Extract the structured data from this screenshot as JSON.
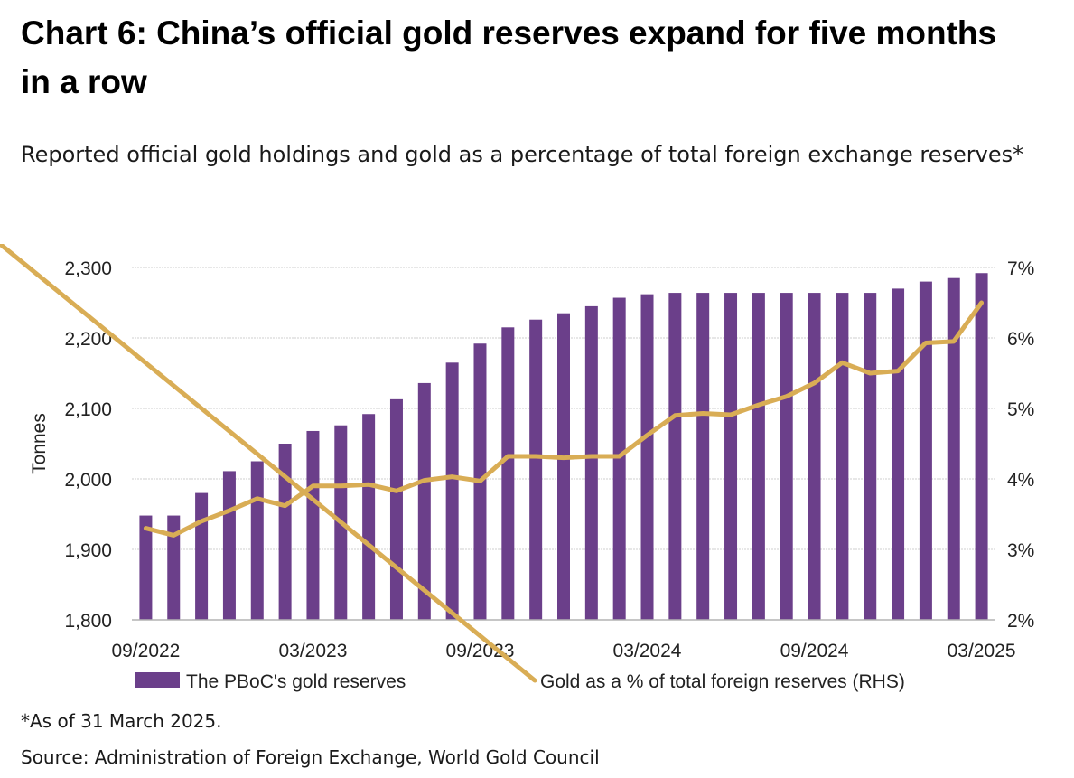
{
  "header": {
    "title": "Chart 6: China’s official gold reserves expand for five months in a row",
    "subtitle": "Reported official gold holdings and gold as a percentage of total foreign exchange reserves*"
  },
  "footer": {
    "footnote": "*As of 31 March 2025.",
    "source": "Source: Administration of Foreign Exchange, World Gold Council"
  },
  "colors": {
    "bars": "#6b3f8a",
    "line": "#d9ad55",
    "grid": "#cfcfcf",
    "axis": "#b3b3b3"
  },
  "chart_data": {
    "type": "bar+line",
    "title": "Chart 6: China’s official gold reserves expand for five months in a row",
    "subtitle": "Reported official gold holdings and gold as a percentage of total foreign exchange reserves*",
    "ylabel": "Tonnes",
    "ylim": [
      1800,
      2300
    ],
    "yticks": [
      "1,800",
      "1,900",
      "2,000",
      "2,100",
      "2,200",
      "2,300"
    ],
    "ytick_values": [
      1800,
      1900,
      2000,
      2100,
      2200,
      2300
    ],
    "y2lim": [
      2,
      7
    ],
    "y2ticks": [
      "2%",
      "3%",
      "4%",
      "5%",
      "6%",
      "7%"
    ],
    "y2tick_values": [
      2,
      3,
      4,
      5,
      6,
      7
    ],
    "grid": true,
    "legend_position": "bottom",
    "xtick_labels": [
      {
        "index": 0,
        "label": "09/2022"
      },
      {
        "index": 6,
        "label": "03/2023"
      },
      {
        "index": 12,
        "label": "09/2023"
      },
      {
        "index": 18,
        "label": "03/2024"
      },
      {
        "index": 24,
        "label": "09/2024"
      },
      {
        "index": 30,
        "label": "03/2025"
      }
    ],
    "categories": [
      "09/2022",
      "10/2022",
      "11/2022",
      "12/2022",
      "01/2023",
      "02/2023",
      "03/2023",
      "04/2023",
      "05/2023",
      "06/2023",
      "07/2023",
      "08/2023",
      "09/2023",
      "10/2023",
      "11/2023",
      "12/2023",
      "01/2024",
      "02/2024",
      "03/2024",
      "04/2024",
      "05/2024",
      "06/2024",
      "07/2024",
      "08/2024",
      "09/2024",
      "10/2024",
      "11/2024",
      "12/2024",
      "01/2025",
      "02/2025",
      "03/2025"
    ],
    "series": [
      {
        "name": "The PBoC's gold reserves",
        "type": "bar",
        "axis": "left",
        "values": [
          1948,
          1948,
          1980,
          2011,
          2025,
          2050,
          2068,
          2076,
          2092,
          2113,
          2136,
          2165,
          2192,
          2215,
          2226,
          2235,
          2245,
          2257,
          2262,
          2264,
          2264,
          2264,
          2264,
          2264,
          2264,
          2264,
          2264,
          2270,
          2280,
          2285,
          2292
        ]
      },
      {
        "name": "Gold as a % of total foreign reserves (RHS)",
        "type": "line",
        "axis": "right",
        "values": [
          3.3,
          3.2,
          3.4,
          3.55,
          3.72,
          3.62,
          3.9,
          3.9,
          3.92,
          3.83,
          3.98,
          4.03,
          3.97,
          4.32,
          4.32,
          4.3,
          4.32,
          4.32,
          4.62,
          4.9,
          4.93,
          4.91,
          5.05,
          5.17,
          5.36,
          5.65,
          5.5,
          5.53,
          5.93,
          5.95,
          6.5
        ]
      }
    ]
  }
}
